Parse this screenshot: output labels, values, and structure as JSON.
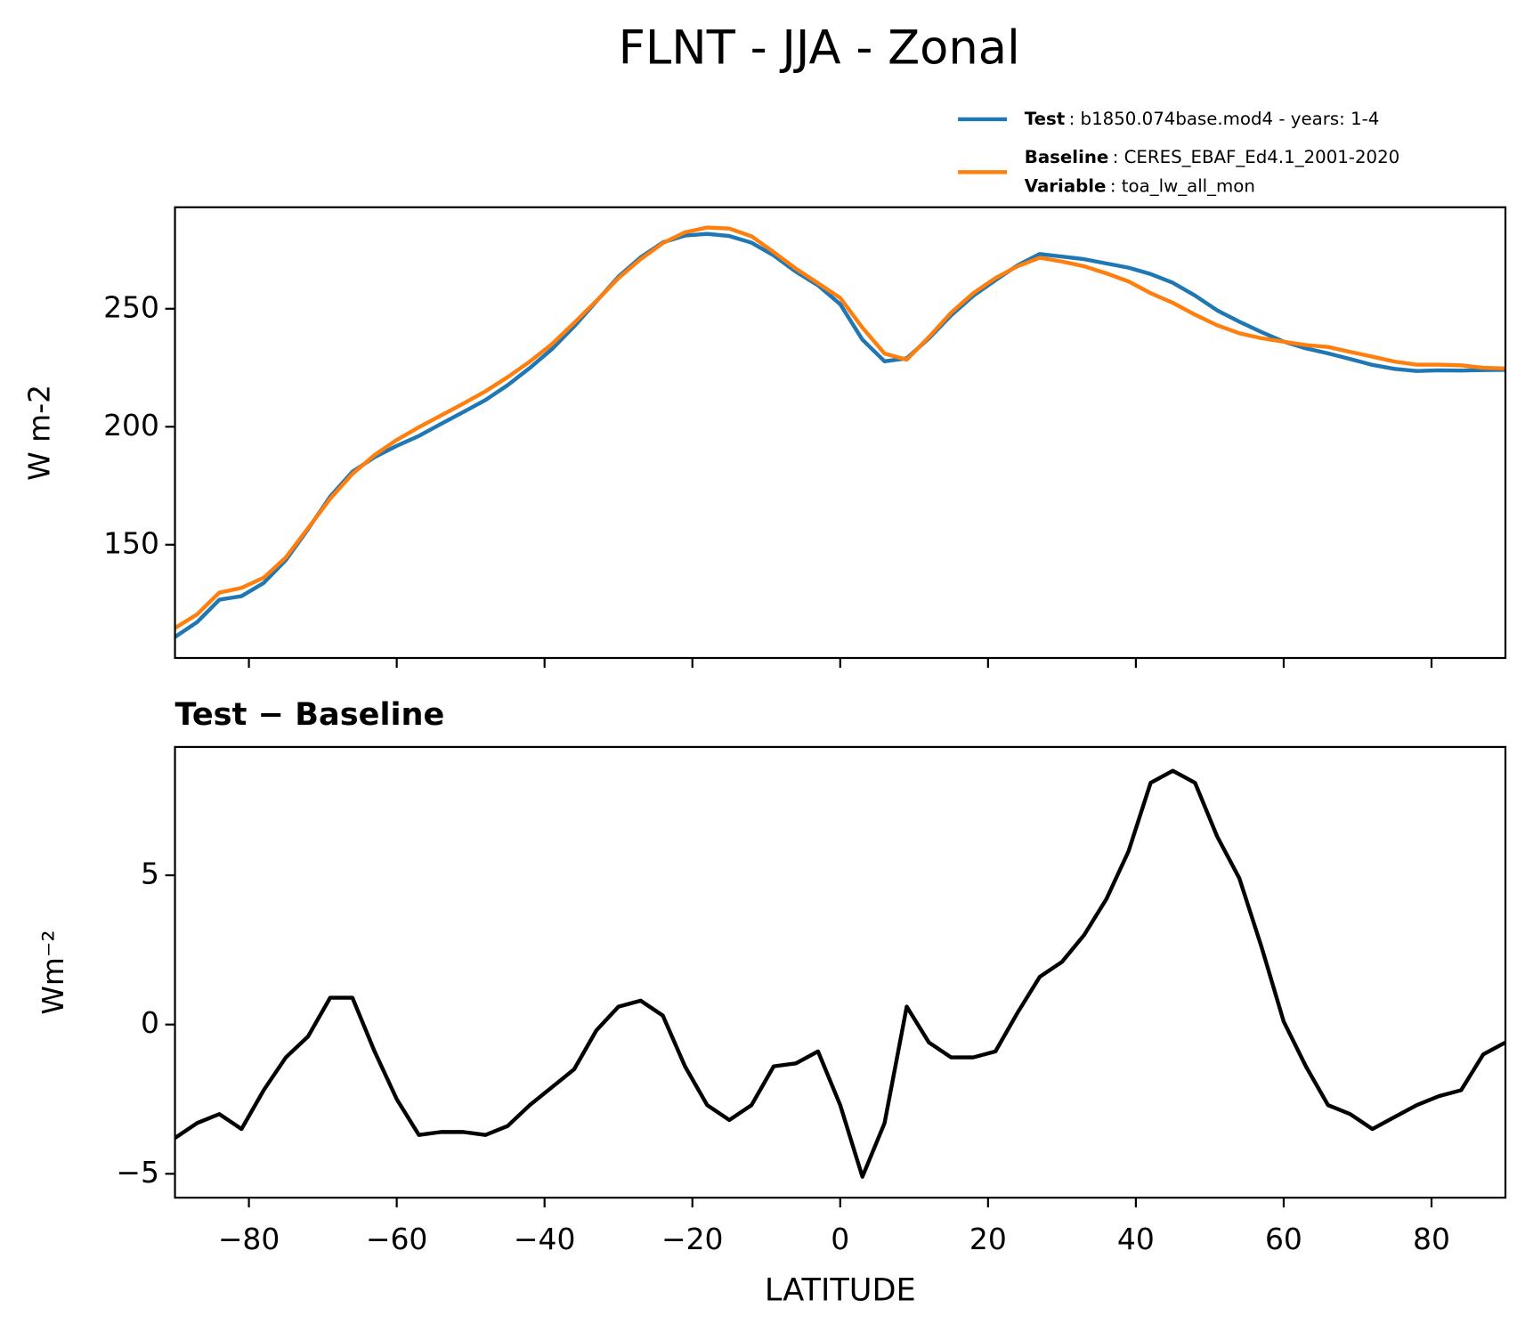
{
  "title": "FLNT - JJA - Zonal",
  "chart_data": [
    {
      "type": "line",
      "ylabel": "W m-2",
      "x": [
        -90,
        -87,
        -84,
        -81,
        -78,
        -75,
        -72,
        -69,
        -66,
        -63,
        -60,
        -57,
        -54,
        -51,
        -48,
        -45,
        -42,
        -39,
        -36,
        -33,
        -30,
        -27,
        -24,
        -21,
        -18,
        -15,
        -12,
        -9,
        -6,
        -3,
        0,
        3,
        6,
        9,
        12,
        15,
        18,
        21,
        24,
        27,
        30,
        33,
        36,
        39,
        42,
        45,
        48,
        51,
        54,
        57,
        60,
        63,
        66,
        69,
        72,
        75,
        78,
        81,
        84,
        87,
        90
      ],
      "series": [
        {
          "name": "Test",
          "detail": ": b1850.074base.mod4 - years: 1-4",
          "color": "#1f77b4",
          "values": [
            110.9,
            117.2,
            126.7,
            128.2,
            133.8,
            143.5,
            156.6,
            170.4,
            180.9,
            187.1,
            191.9,
            196.1,
            201.2,
            206.2,
            211.3,
            217.6,
            224.9,
            232.9,
            242.5,
            253.1,
            263.6,
            271.8,
            278.1,
            281,
            281.7,
            280.8,
            278,
            272.6,
            265.7,
            259.9,
            251.9,
            236.9,
            227.7,
            229,
            237.4,
            247.2,
            255.5,
            262.1,
            268.4,
            273.2,
            272.1,
            271,
            269.2,
            267.4,
            264.7,
            261,
            255.6,
            249.3,
            244.5,
            240.1,
            236.1,
            233.2,
            231.1,
            228.7,
            226.2,
            224.5,
            223.6,
            223.9,
            223.8,
            224,
            224.1
          ]
        },
        {
          "name": "Baseline",
          "detail": ": CERES_EBAF_Ed4.1_2001-2020",
          "color": "#ff7f0e",
          "values": [
            114.7,
            120.5,
            129.7,
            131.7,
            136,
            144.6,
            157,
            169.5,
            180,
            188,
            194.4,
            199.8,
            204.8,
            209.8,
            215,
            221,
            227.6,
            235,
            244,
            253.3,
            263,
            271,
            277.8,
            282.4,
            284.4,
            284,
            280.7,
            274,
            267,
            260.8,
            254.6,
            242,
            231,
            228.4,
            238,
            248.3,
            256.6,
            263,
            268,
            271.6,
            270,
            268,
            265,
            261.6,
            256.6,
            252.5,
            247.5,
            243,
            239.6,
            237.5,
            236,
            234.6,
            233.8,
            231.7,
            229.7,
            227.6,
            226.3,
            226.3,
            226,
            225,
            224.7
          ]
        }
      ],
      "legend_note": {
        "name": "Variable",
        "detail": ": toa_lw_all_mon"
      },
      "legend": "upper right",
      "xlim": [
        -90,
        90
      ],
      "xticks": [
        -80,
        -60,
        -40,
        -20,
        0,
        20,
        40,
        60,
        80
      ],
      "ylim": [
        102,
        293
      ],
      "yticks": [
        150,
        200,
        250
      ]
    },
    {
      "type": "line",
      "title": "Test − Baseline",
      "xlabel": "LATITUDE",
      "ylabel": "Wm⁻²",
      "x": [
        -90,
        -87,
        -84,
        -81,
        -78,
        -75,
        -72,
        -69,
        -66,
        -63,
        -60,
        -57,
        -54,
        -51,
        -48,
        -45,
        -42,
        -39,
        -36,
        -33,
        -30,
        -27,
        -24,
        -21,
        -18,
        -15,
        -12,
        -9,
        -6,
        -3,
        0,
        3,
        6,
        9,
        12,
        15,
        18,
        21,
        24,
        27,
        30,
        33,
        36,
        39,
        42,
        45,
        48,
        51,
        54,
        57,
        60,
        63,
        66,
        69,
        72,
        75,
        78,
        81,
        84,
        87,
        90
      ],
      "color": "#000000",
      "values": [
        -3.8,
        -3.3,
        -3.0,
        -3.5,
        -2.2,
        -1.1,
        -0.4,
        0.9,
        0.9,
        -0.9,
        -2.5,
        -3.7,
        -3.6,
        -3.6,
        -3.7,
        -3.4,
        -2.7,
        -2.1,
        -1.5,
        -0.2,
        0.6,
        0.8,
        0.3,
        -1.4,
        -2.7,
        -3.2,
        -2.7,
        -1.4,
        -1.3,
        -0.9,
        -2.7,
        -5.1,
        -3.3,
        0.6,
        -0.6,
        -1.1,
        -1.1,
        -0.9,
        0.4,
        1.6,
        2.1,
        3.0,
        4.2,
        5.8,
        8.1,
        8.5,
        8.1,
        6.3,
        4.9,
        2.6,
        0.1,
        -1.4,
        -2.7,
        -3.0,
        -3.5,
        -3.1,
        -2.7,
        -2.4,
        -2.2,
        -1.0,
        -0.6
      ],
      "xlim": [
        -90,
        90
      ],
      "xticks": [
        {
          "value": -80,
          "label": "−80"
        },
        {
          "value": -60,
          "label": "−60"
        },
        {
          "value": -40,
          "label": "−40"
        },
        {
          "value": -20,
          "label": "−20"
        },
        0,
        20,
        40,
        60,
        80
      ],
      "ylim": [
        -5.8,
        9.3
      ],
      "yticks": [
        {
          "value": -5,
          "label": "−5"
        },
        0,
        5
      ]
    }
  ]
}
